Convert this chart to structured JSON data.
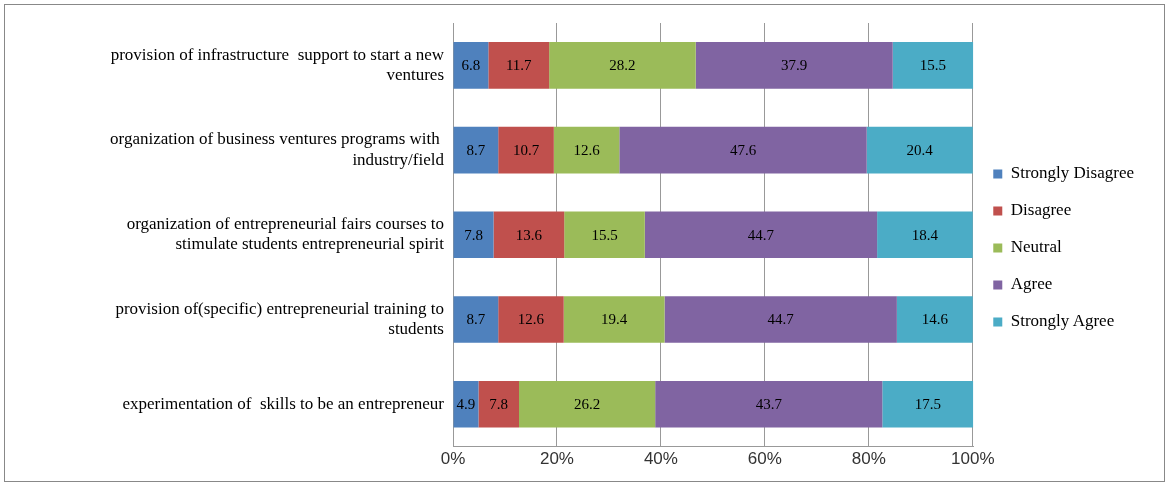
{
  "chart_data": {
    "type": "bar",
    "orientation": "horizontal",
    "stacked": true,
    "categories": [
      "provision of infrastructure  support to start a new ventures",
      "organization of business ventures programs with  industry/field",
      "organization of entrepreneurial fairs courses to stimulate students entrepreneurial spirit",
      "provision of(specific) entrepreneurial training to students",
      "experimentation of  skills to be an entrepreneur"
    ],
    "series": [
      {
        "name": "Strongly Disagree",
        "color": "#4f81bd",
        "values": [
          6.8,
          8.7,
          7.8,
          8.7,
          4.9
        ]
      },
      {
        "name": "Disagree",
        "color": "#c0504d",
        "values": [
          11.7,
          10.7,
          13.6,
          12.6,
          7.8
        ]
      },
      {
        "name": "Neutral",
        "color": "#9bbb59",
        "values": [
          28.2,
          12.6,
          15.5,
          19.4,
          26.2
        ]
      },
      {
        "name": "Agree",
        "color": "#8064a2",
        "values": [
          37.9,
          47.6,
          44.7,
          44.7,
          43.7
        ]
      },
      {
        "name": "Strongly Agree",
        "color": "#4bacc6",
        "values": [
          15.5,
          20.4,
          18.4,
          14.6,
          17.5
        ]
      }
    ],
    "xlim": [
      0,
      100.1
    ],
    "xticks": [
      {
        "value": 0,
        "label": "0%"
      },
      {
        "value": 20,
        "label": "20%"
      },
      {
        "value": 40,
        "label": "40%"
      },
      {
        "value": 60,
        "label": "60%"
      },
      {
        "value": 80,
        "label": "80%"
      },
      {
        "value": 100,
        "label": "100%"
      }
    ],
    "grid": "x",
    "legend": "right",
    "data_labels": true
  }
}
